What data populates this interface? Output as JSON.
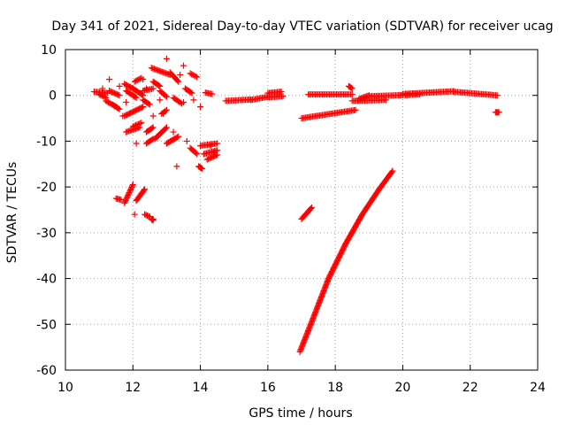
{
  "chart_data": {
    "type": "scatter",
    "title": "Day 341 of 2021, Sidereal Day-to-day VTEC variation (SDTVAR) for receiver ucag",
    "xlabel": "GPS time / hours",
    "ylabel": "SDTVAR / TECUs",
    "xlim": [
      10,
      24
    ],
    "ylim": [
      -60,
      10
    ],
    "xticks": [
      "10",
      "12",
      "14",
      "16",
      "18",
      "20",
      "22",
      "24"
    ],
    "yticks": [
      "-60",
      "-50",
      "-40",
      "-30",
      "-20",
      "-10",
      "0",
      "10"
    ],
    "grid": true,
    "marker": "plus",
    "color": "#ff0000",
    "series": [
      {
        "name": "SDTVAR",
        "segments": [
          {
            "x0": 10.85,
            "y0": 0.8,
            "x1": 11.25,
            "y1": 0.5
          },
          {
            "x0": 11.0,
            "y0": 0.2,
            "x1": 11.2,
            "y1": -0.5
          },
          {
            "x0": 11.2,
            "y0": -1.2,
            "x1": 11.5,
            "y1": -2.5
          },
          {
            "x0": 11.3,
            "y0": 1.0,
            "x1": 11.6,
            "y1": 0.0
          },
          {
            "x0": 11.4,
            "y0": -2.0,
            "x1": 11.6,
            "y1": -3.0
          },
          {
            "x0": 11.75,
            "y0": -4.5,
            "x1": 12.3,
            "y1": -2.5
          },
          {
            "x0": 11.75,
            "y0": 2.5,
            "x1": 12.0,
            "y1": 1.5
          },
          {
            "x0": 11.8,
            "y0": 1.0,
            "x1": 12.1,
            "y1": -0.5
          },
          {
            "x0": 11.8,
            "y0": -8.0,
            "x1": 12.2,
            "y1": -7.0
          },
          {
            "x0": 12.0,
            "y0": -6.8,
            "x1": 12.25,
            "y1": -6.0
          },
          {
            "x0": 12.0,
            "y0": 1.5,
            "x1": 12.3,
            "y1": 0.0
          },
          {
            "x0": 12.05,
            "y0": 3.0,
            "x1": 12.25,
            "y1": 3.8
          },
          {
            "x0": 12.3,
            "y0": 1.0,
            "x1": 12.6,
            "y1": 1.5
          },
          {
            "x0": 12.3,
            "y0": -1.0,
            "x1": 12.5,
            "y1": -2.0
          },
          {
            "x0": 12.4,
            "y0": -8.0,
            "x1": 12.6,
            "y1": -7.0
          },
          {
            "x0": 12.4,
            "y0": -10.5,
            "x1": 12.6,
            "y1": -9.5
          },
          {
            "x0": 12.55,
            "y0": 6.0,
            "x1": 13.1,
            "y1": 4.5
          },
          {
            "x0": 12.6,
            "y0": 3.0,
            "x1": 12.8,
            "y1": 2.0
          },
          {
            "x0": 12.65,
            "y0": -9.5,
            "x1": 13.0,
            "y1": -7.0
          },
          {
            "x0": 12.8,
            "y0": 1.0,
            "x1": 13.0,
            "y1": -0.3
          },
          {
            "x0": 12.85,
            "y0": -4.0,
            "x1": 13.0,
            "y1": -3.2
          },
          {
            "x0": 13.0,
            "y0": -10.5,
            "x1": 13.35,
            "y1": -9.0
          },
          {
            "x0": 13.1,
            "y0": 5.0,
            "x1": 13.35,
            "y1": 3.0
          },
          {
            "x0": 13.2,
            "y0": -0.5,
            "x1": 13.45,
            "y1": -1.8
          },
          {
            "x0": 13.55,
            "y0": 1.5,
            "x1": 13.75,
            "y1": 0.5
          },
          {
            "x0": 13.7,
            "y0": 4.8,
            "x1": 13.9,
            "y1": 4.0
          },
          {
            "x0": 13.7,
            "y0": -11.5,
            "x1": 13.9,
            "y1": -12.8
          },
          {
            "x0": 13.95,
            "y0": -15.5,
            "x1": 14.05,
            "y1": -16.0
          },
          {
            "x0": 14.0,
            "y0": -11.0,
            "x1": 14.5,
            "y1": -10.5
          },
          {
            "x0": 14.1,
            "y0": -12.8,
            "x1": 14.5,
            "y1": -12.0
          },
          {
            "x0": 14.15,
            "y0": 0.6,
            "x1": 14.35,
            "y1": 0.3
          },
          {
            "x0": 14.2,
            "y0": -14.0,
            "x1": 14.5,
            "y1": -13.0
          },
          {
            "x0": 11.5,
            "y0": -22.5,
            "x1": 11.65,
            "y1": -22.8
          },
          {
            "x0": 11.75,
            "y0": -23.5,
            "x1": 12.0,
            "y1": -19.5
          },
          {
            "x0": 12.1,
            "y0": -23.0,
            "x1": 12.35,
            "y1": -20.5
          },
          {
            "x0": 12.35,
            "y0": -26.0,
            "x1": 12.5,
            "y1": -26.5
          },
          {
            "x0": 12.55,
            "y0": -27.0,
            "x1": 12.6,
            "y1": -27.3
          },
          {
            "x0": 14.75,
            "y0": -1.2,
            "x1": 15.5,
            "y1": -0.9
          },
          {
            "x0": 15.5,
            "y0": -1.0,
            "x1": 16.0,
            "y1": -0.3
          },
          {
            "x0": 16.0,
            "y0": -0.4,
            "x1": 16.45,
            "y1": -0.2
          },
          {
            "x0": 16.0,
            "y0": 0.5,
            "x1": 16.4,
            "y1": 0.8
          },
          {
            "x0": 17.0,
            "y0": -27.0,
            "x1": 17.3,
            "y1": -24.5
          },
          {
            "x0": 17.0,
            "y0": -5.0,
            "x1": 18.6,
            "y1": -3.2
          },
          {
            "x0": 17.2,
            "y0": 0.2,
            "x1": 18.5,
            "y1": 0.2
          },
          {
            "x0": 18.4,
            "y0": 2.0,
            "x1": 18.5,
            "y1": 1.5
          },
          {
            "x0": 18.5,
            "y0": -1.2,
            "x1": 19.5,
            "y1": -1.0
          },
          {
            "x0": 18.7,
            "y0": -0.8,
            "x1": 19.0,
            "y1": 0.0
          },
          {
            "x0": 19.0,
            "y0": -0.2,
            "x1": 20.5,
            "y1": 0.2
          },
          {
            "x0": 20.0,
            "y0": 0.3,
            "x1": 21.5,
            "y1": 0.9
          },
          {
            "x0": 21.5,
            "y0": 0.8,
            "x1": 22.8,
            "y1": 0.0
          },
          {
            "x0": 22.75,
            "y0": -3.7,
            "x1": 22.85,
            "y1": -3.7
          }
        ],
        "curve": {
          "x": [
            16.95,
            17.3,
            17.8,
            18.3,
            18.8,
            19.3,
            19.7
          ],
          "y": [
            -56.0,
            -49.5,
            -40.0,
            -32.5,
            -26.0,
            -20.5,
            -16.5
          ]
        },
        "scattered": [
          {
            "x": 11.1,
            "y": 1.5
          },
          {
            "x": 11.3,
            "y": 3.5
          },
          {
            "x": 11.6,
            "y": 2.0
          },
          {
            "x": 11.7,
            "y": -4.5
          },
          {
            "x": 11.8,
            "y": -1.5
          },
          {
            "x": 12.1,
            "y": -10.5
          },
          {
            "x": 12.3,
            "y": 3.5
          },
          {
            "x": 12.4,
            "y": 1.5
          },
          {
            "x": 12.6,
            "y": -4.5
          },
          {
            "x": 12.8,
            "y": -1.0
          },
          {
            "x": 12.9,
            "y": -4.0
          },
          {
            "x": 13.0,
            "y": 8.0
          },
          {
            "x": 13.2,
            "y": -8.0
          },
          {
            "x": 13.3,
            "y": -15.5
          },
          {
            "x": 13.4,
            "y": 4.5
          },
          {
            "x": 13.5,
            "y": -1.5
          },
          {
            "x": 13.5,
            "y": 6.5
          },
          {
            "x": 13.6,
            "y": -10.0
          },
          {
            "x": 13.8,
            "y": -1.0
          },
          {
            "x": 14.0,
            "y": -2.5
          },
          {
            "x": 14.3,
            "y": -11.0
          },
          {
            "x": 14.4,
            "y": -12.5
          },
          {
            "x": 12.05,
            "y": -26.0
          },
          {
            "x": 12.6,
            "y": -27.0
          }
        ]
      }
    ]
  }
}
